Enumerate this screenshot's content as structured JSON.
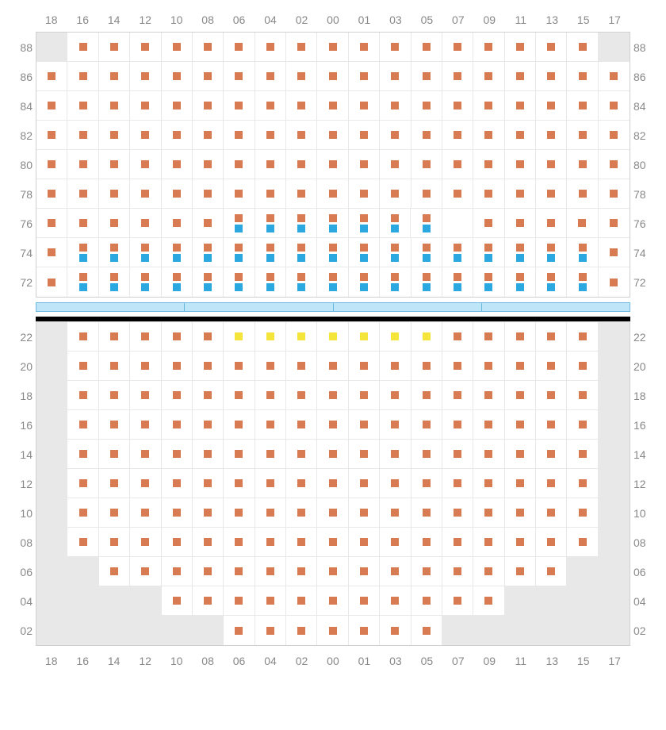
{
  "colors": {
    "orange": "#d97b52",
    "blue": "#2ca8e0",
    "yellow": "#f5e53a",
    "empty": "#e8e8e8",
    "grid": "#e8e8e8",
    "label": "#888888",
    "divider": "#bfe5f8",
    "dividerBorder": "#6bb8e0"
  },
  "columns": [
    "18",
    "16",
    "14",
    "12",
    "10",
    "08",
    "06",
    "04",
    "02",
    "00",
    "01",
    "03",
    "05",
    "07",
    "09",
    "11",
    "13",
    "15",
    "17"
  ],
  "upper": {
    "rows": [
      "88",
      "86",
      "84",
      "82",
      "80",
      "78",
      "76",
      "74",
      "72"
    ],
    "cells": [
      [
        "E",
        "O",
        "O",
        "O",
        "O",
        "O",
        "O",
        "O",
        "O",
        "O",
        "O",
        "O",
        "O",
        "O",
        "O",
        "O",
        "O",
        "O",
        "E"
      ],
      [
        "O",
        "O",
        "O",
        "O",
        "O",
        "O",
        "O",
        "O",
        "O",
        "O",
        "O",
        "O",
        "O",
        "O",
        "O",
        "O",
        "O",
        "O",
        "O"
      ],
      [
        "O",
        "O",
        "O",
        "O",
        "O",
        "O",
        "O",
        "O",
        "O",
        "O",
        "O",
        "O",
        "O",
        "O",
        "O",
        "O",
        "O",
        "O",
        "O"
      ],
      [
        "O",
        "O",
        "O",
        "O",
        "O",
        "O",
        "O",
        "O",
        "O",
        "O",
        "O",
        "O",
        "O",
        "O",
        "O",
        "O",
        "O",
        "O",
        "O"
      ],
      [
        "O",
        "O",
        "O",
        "O",
        "O",
        "O",
        "O",
        "O",
        "O",
        "O",
        "O",
        "O",
        "O",
        "O",
        "O",
        "O",
        "O",
        "O",
        "O"
      ],
      [
        "O",
        "O",
        "O",
        "O",
        "O",
        "O",
        "O",
        "O",
        "O",
        "O",
        "O",
        "O",
        "O",
        "O",
        "O",
        "O",
        "O",
        "O",
        "O"
      ],
      [
        "O",
        "O",
        "O",
        "O",
        "O",
        "O",
        "OB",
        "OB",
        "OB",
        "OB",
        "OB",
        "OB",
        "OB",
        "W",
        "O",
        "O",
        "O",
        "O",
        "O"
      ],
      [
        "O",
        "OB",
        "OB",
        "OB",
        "OB",
        "OB",
        "OB",
        "OB",
        "OB",
        "OB",
        "OB",
        "OB",
        "OB",
        "OB",
        "OB",
        "OB",
        "OB",
        "OB",
        "O"
      ],
      [
        "O",
        "OB",
        "OB",
        "OB",
        "OB",
        "OB",
        "OB",
        "OB",
        "OB",
        "OB",
        "OB",
        "OB",
        "OB",
        "OB",
        "OB",
        "OB",
        "OB",
        "OB",
        "O"
      ]
    ]
  },
  "lower": {
    "rows": [
      "22",
      "20",
      "18",
      "16",
      "14",
      "12",
      "10",
      "08",
      "06",
      "04",
      "02"
    ],
    "cells": [
      [
        "E",
        "O",
        "O",
        "O",
        "O",
        "O",
        "Y",
        "Y",
        "Y",
        "Y",
        "Y",
        "Y",
        "Y",
        "O",
        "O",
        "O",
        "O",
        "O",
        "E"
      ],
      [
        "E",
        "O",
        "O",
        "O",
        "O",
        "O",
        "O",
        "O",
        "O",
        "O",
        "O",
        "O",
        "O",
        "O",
        "O",
        "O",
        "O",
        "O",
        "E"
      ],
      [
        "E",
        "O",
        "O",
        "O",
        "O",
        "O",
        "O",
        "O",
        "O",
        "O",
        "O",
        "O",
        "O",
        "O",
        "O",
        "O",
        "O",
        "O",
        "E"
      ],
      [
        "E",
        "O",
        "O",
        "O",
        "O",
        "O",
        "O",
        "O",
        "O",
        "O",
        "O",
        "O",
        "O",
        "O",
        "O",
        "O",
        "O",
        "O",
        "E"
      ],
      [
        "E",
        "O",
        "O",
        "O",
        "O",
        "O",
        "O",
        "O",
        "O",
        "O",
        "O",
        "O",
        "O",
        "O",
        "O",
        "O",
        "O",
        "O",
        "E"
      ],
      [
        "E",
        "O",
        "O",
        "O",
        "O",
        "O",
        "O",
        "O",
        "O",
        "O",
        "O",
        "O",
        "O",
        "O",
        "O",
        "O",
        "O",
        "O",
        "E"
      ],
      [
        "E",
        "O",
        "O",
        "O",
        "O",
        "O",
        "O",
        "O",
        "O",
        "O",
        "O",
        "O",
        "O",
        "O",
        "O",
        "O",
        "O",
        "O",
        "E"
      ],
      [
        "E",
        "O",
        "O",
        "O",
        "O",
        "O",
        "O",
        "O",
        "O",
        "O",
        "O",
        "O",
        "O",
        "O",
        "O",
        "O",
        "O",
        "O",
        "E"
      ],
      [
        "E",
        "E",
        "O",
        "O",
        "O",
        "O",
        "O",
        "O",
        "O",
        "O",
        "O",
        "O",
        "O",
        "O",
        "O",
        "O",
        "O",
        "E",
        "E"
      ],
      [
        "E",
        "E",
        "E",
        "E",
        "O",
        "O",
        "O",
        "O",
        "O",
        "O",
        "O",
        "O",
        "O",
        "O",
        "O",
        "E",
        "E",
        "E",
        "E"
      ],
      [
        "E",
        "E",
        "E",
        "E",
        "E",
        "E",
        "O",
        "O",
        "O",
        "O",
        "O",
        "O",
        "O",
        "E",
        "E",
        "E",
        "E",
        "E",
        "E"
      ]
    ]
  }
}
